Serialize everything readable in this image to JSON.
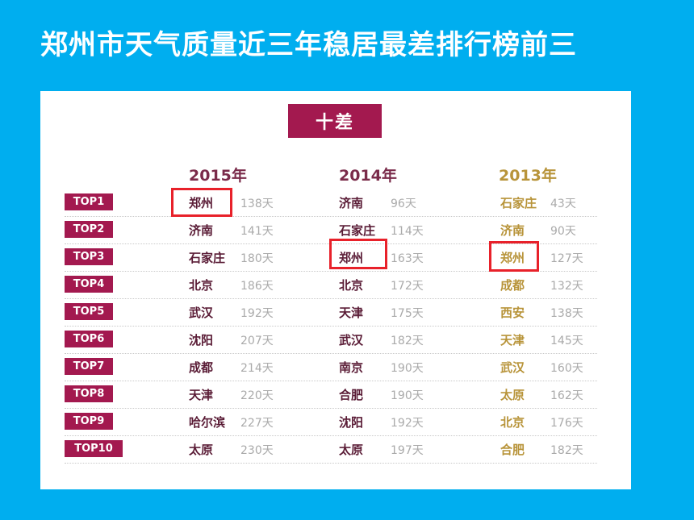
{
  "title": "郑州市天气质量近三年稳居最差排行榜前三",
  "badge": "十差",
  "years": [
    "2015年",
    "2014年",
    "2013年"
  ],
  "colors": {
    "background": "#00aeef",
    "accent": "#a3194f",
    "highlight": "#e8212a",
    "gold": "#b8943a"
  },
  "rows": [
    {
      "rank": "TOP1",
      "c2015": "郑州",
      "d2015": "138天",
      "c2014": "济南",
      "d2014": "96天",
      "c2013": "石家庄",
      "d2013": "43天"
    },
    {
      "rank": "TOP2",
      "c2015": "济南",
      "d2015": "141天",
      "c2014": "石家庄",
      "d2014": "114天",
      "c2013": "济南",
      "d2013": "90天"
    },
    {
      "rank": "TOP3",
      "c2015": "石家庄",
      "d2015": "180天",
      "c2014": "郑州",
      "d2014": "163天",
      "c2013": "郑州",
      "d2013": "127天"
    },
    {
      "rank": "TOP4",
      "c2015": "北京",
      "d2015": "186天",
      "c2014": "北京",
      "d2014": "172天",
      "c2013": "成都",
      "d2013": "132天"
    },
    {
      "rank": "TOP5",
      "c2015": "武汉",
      "d2015": "192天",
      "c2014": "天津",
      "d2014": "175天",
      "c2013": "西安",
      "d2013": "138天"
    },
    {
      "rank": "TOP6",
      "c2015": "沈阳",
      "d2015": "207天",
      "c2014": "武汉",
      "d2014": "182天",
      "c2013": "天津",
      "d2013": "145天"
    },
    {
      "rank": "TOP7",
      "c2015": "成都",
      "d2015": "214天",
      "c2014": "南京",
      "d2014": "190天",
      "c2013": "武汉",
      "d2013": "160天"
    },
    {
      "rank": "TOP8",
      "c2015": "天津",
      "d2015": "220天",
      "c2014": "合肥",
      "d2014": "190天",
      "c2013": "太原",
      "d2013": "162天"
    },
    {
      "rank": "TOP9",
      "c2015": "哈尔滨",
      "d2015": "227天",
      "c2014": "沈阳",
      "d2014": "192天",
      "c2013": "北京",
      "d2013": "176天"
    },
    {
      "rank": "TOP10",
      "c2015": "太原",
      "d2015": "230天",
      "c2014": "太原",
      "d2014": "197天",
      "c2013": "合肥",
      "d2013": "182天"
    }
  ]
}
